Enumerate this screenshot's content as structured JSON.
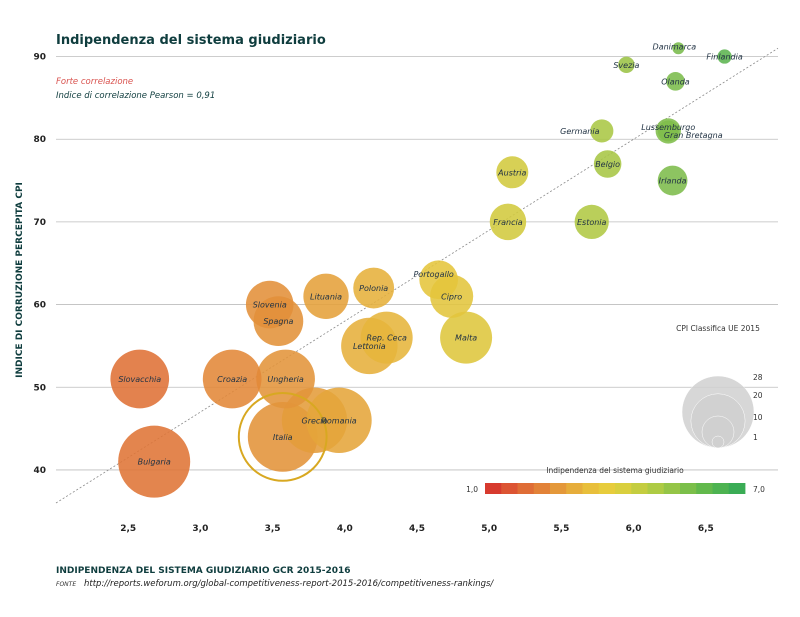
{
  "chart_data": {
    "type": "scatter",
    "title": "Indipendenza del sistema giudiziario",
    "xlabel": "INDIPENDENZA DEL SISTEMA GIUDIZIARIO GCR 2015-2016",
    "ylabel": "INDICE DI CORRUZIONE PERCEPITA CPI",
    "xlim": [
      2.0,
      7.0
    ],
    "ylim": [
      36,
      92
    ],
    "x_ticks": [
      "2,5",
      "3,0",
      "3,5",
      "4,0",
      "4,5",
      "5,0",
      "5,5",
      "6,0",
      "6,5"
    ],
    "x_tick_values": [
      2.5,
      3.0,
      3.5,
      4.0,
      4.5,
      5.0,
      5.5,
      6.0,
      6.5
    ],
    "y_ticks": [
      "40",
      "50",
      "60",
      "70",
      "80",
      "90"
    ],
    "y_tick_values": [
      40,
      50,
      60,
      70,
      80,
      90
    ],
    "grid": "horizontal",
    "trendline": [
      [
        2.0,
        36
      ],
      [
        7.0,
        91
      ]
    ],
    "annotations": {
      "correlation": "Forte correlazione",
      "pearson": "Indice di correlazione Pearson = 0,91"
    },
    "size_legend": {
      "title": "CPI Classifica UE 2015",
      "values": [
        1,
        10,
        20,
        28
      ]
    },
    "color_legend": {
      "title": "Indipendenza del sistema giudiziario",
      "min_label": "1,0",
      "max_label": "7,0",
      "colors": [
        "#d73a2e",
        "#dc5433",
        "#df6d36",
        "#e28238",
        "#e4983a",
        "#e6ad3b",
        "#e8bf3b",
        "#e7cc3c",
        "#d9cf3e",
        "#c4cd40",
        "#aecb44",
        "#95c547",
        "#7bbf4a",
        "#62b94c",
        "#4db351",
        "#3aac55"
      ]
    },
    "points": [
      {
        "name": "Danimarca",
        "x": 6.31,
        "y": 91,
        "rank": 1
      },
      {
        "name": "Finlandia",
        "x": 6.63,
        "y": 90,
        "rank": 2
      },
      {
        "name": "Svezia",
        "x": 5.95,
        "y": 89,
        "rank": 3
      },
      {
        "name": "Olanda",
        "x": 6.29,
        "y": 87,
        "rank": 4
      },
      {
        "name": "Lussemburgo",
        "x": 6.24,
        "y": 81,
        "rank": 5
      },
      {
        "name": "Germania",
        "x": 5.78,
        "y": 81,
        "rank": 6
      },
      {
        "name": "Gran Bretagna",
        "x": 6.24,
        "y": 81,
        "rank": 7
      },
      {
        "name": "Belgio",
        "x": 5.82,
        "y": 77,
        "rank": 8
      },
      {
        "name": "Irlanda",
        "x": 6.27,
        "y": 75,
        "rank": 9
      },
      {
        "name": "Austria",
        "x": 5.16,
        "y": 76,
        "rank": 10
      },
      {
        "name": "Francia",
        "x": 5.13,
        "y": 70,
        "rank": 12
      },
      {
        "name": "Estonia",
        "x": 5.71,
        "y": 70,
        "rank": 11
      },
      {
        "name": "Portogallo",
        "x": 4.65,
        "y": 63,
        "rank": 13
      },
      {
        "name": "Polonia",
        "x": 4.2,
        "y": 62,
        "rank": 14
      },
      {
        "name": "Cipro",
        "x": 4.74,
        "y": 61,
        "rank": 15
      },
      {
        "name": "Lituania",
        "x": 3.87,
        "y": 61,
        "rank": 16
      },
      {
        "name": "Slovenia",
        "x": 3.48,
        "y": 60,
        "rank": 17
      },
      {
        "name": "Spagna",
        "x": 3.54,
        "y": 58,
        "rank": 18
      },
      {
        "name": "Rep. Ceca",
        "x": 4.29,
        "y": 56,
        "rank": 19
      },
      {
        "name": "Malta",
        "x": 4.84,
        "y": 56,
        "rank": 19
      },
      {
        "name": "Lettonia",
        "x": 4.17,
        "y": 55,
        "rank": 21
      },
      {
        "name": "Ungheria",
        "x": 3.59,
        "y": 51,
        "rank": 22
      },
      {
        "name": "Slovacchia",
        "x": 2.58,
        "y": 51,
        "rank": 22
      },
      {
        "name": "Croazia",
        "x": 3.22,
        "y": 51,
        "rank": 22
      },
      {
        "name": "Grecia",
        "x": 3.79,
        "y": 46,
        "rank": 25
      },
      {
        "name": "Romania",
        "x": 3.96,
        "y": 46,
        "rank": 25
      },
      {
        "name": "Italia",
        "x": 3.57,
        "y": 44,
        "rank": 27
      },
      {
        "name": "Bulgaria",
        "x": 2.68,
        "y": 41,
        "rank": 28
      }
    ],
    "highlight": "Italia",
    "source_label": "FONTE",
    "source_url": "http://reports.weforum.org/global-competitiveness-report-2015-2016/competitiveness-rankings/"
  },
  "colors": {
    "title": "#0f3d3e",
    "highlight_ring": "#d8a821",
    "annotation_red": "#d9534f",
    "annotation_teal": "#0f3d3e"
  }
}
